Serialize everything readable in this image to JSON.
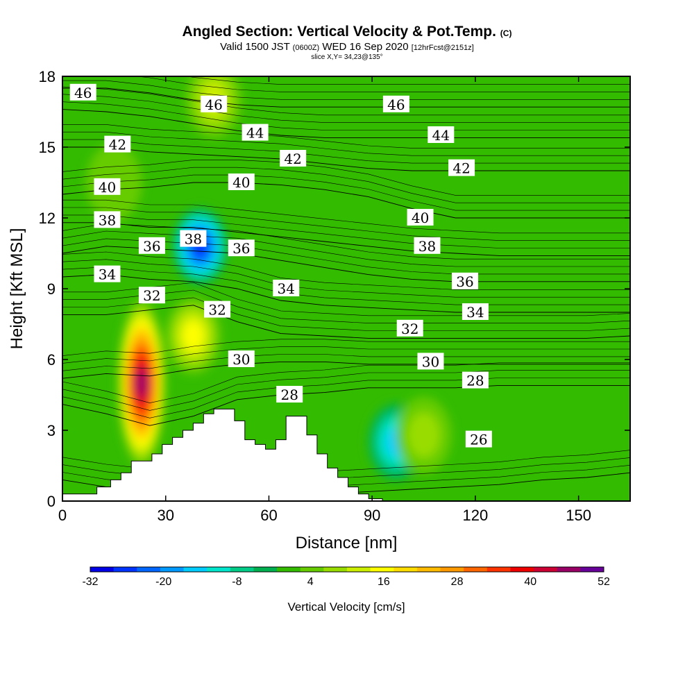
{
  "header": {
    "title": "Angled Section: Vertical Velocity & Pot.Temp.",
    "title_suffix": "(C)",
    "subtitle_a": "Valid 1500 JST",
    "subtitle_b": "(0600Z)",
    "subtitle_c": "WED 16 Sep 2020",
    "subtitle_d": "[12hrFcst@2151z]",
    "slice": "slice X,Y= 34,23@135°"
  },
  "chart_data": {
    "type": "heatmap",
    "xlabel": "Distance [nm]",
    "ylabel": "Height [Kft MSL]",
    "xlim": [
      0,
      165
    ],
    "ylim": [
      0,
      18
    ],
    "xticks": [
      "0",
      "30",
      "60",
      "90",
      "120",
      "150"
    ],
    "yticks": [
      "0",
      "3",
      "6",
      "9",
      "12",
      "15",
      "18"
    ],
    "colorbar": {
      "title": "Vertical Velocity [cm/s]",
      "levels": [
        -32,
        -28,
        -24,
        -20,
        -16,
        -12,
        -8,
        -4,
        0,
        4,
        8,
        12,
        16,
        20,
        24,
        28,
        32,
        36,
        40,
        44,
        48,
        52
      ],
      "tick_labels": [
        "-32",
        "-20",
        "-8",
        "4",
        "16",
        "28",
        "40",
        "52"
      ],
      "colors": [
        "#0000e6",
        "#0033ff",
        "#0066ff",
        "#0099ff",
        "#00ccff",
        "#00e6cc",
        "#00cc88",
        "#00b050",
        "#33bb00",
        "#66cc00",
        "#99dd00",
        "#ccee00",
        "#ffff00",
        "#ffdd00",
        "#ffbb00",
        "#ff9900",
        "#ff6600",
        "#ff3300",
        "#ee0000",
        "#cc0033",
        "#990066",
        "#660099"
      ]
    },
    "field": {
      "background_value": 2,
      "features": [
        {
          "x": 23,
          "y": 5.0,
          "value": 52,
          "note": "updraft core"
        },
        {
          "x": 38,
          "y": 7.0,
          "value": 20
        },
        {
          "x": 40,
          "y": 10.8,
          "value": -28,
          "note": "downdraft core"
        },
        {
          "x": 97,
          "y": 2.5,
          "value": -14
        },
        {
          "x": 44,
          "y": 17.0,
          "value": 16
        },
        {
          "x": 15,
          "y": 13.5,
          "value": 8
        },
        {
          "x": 105,
          "y": 2.8,
          "value": 12
        }
      ]
    },
    "terrain": {
      "x": [
        0,
        10,
        14,
        17,
        20,
        26,
        29,
        32,
        35,
        38,
        41,
        44,
        47,
        50,
        53,
        56,
        59,
        62,
        65,
        68,
        71,
        74,
        77,
        80,
        83,
        86,
        89,
        93
      ],
      "height": [
        0.3,
        0.6,
        0.9,
        1.2,
        1.7,
        2.0,
        2.4,
        2.7,
        3.0,
        3.3,
        3.7,
        3.9,
        3.9,
        3.4,
        2.6,
        2.4,
        2.2,
        2.6,
        3.6,
        3.6,
        2.8,
        2.0,
        1.4,
        1.0,
        0.6,
        0.3,
        0.1,
        0
      ]
    },
    "isentropes": [
      {
        "label": "26",
        "label_x": 121,
        "label_y": 2.6,
        "heights": [
          0.9,
          0.6,
          0.4,
          0.3,
          0.3,
          0.3,
          0.3,
          0.4,
          0.5,
          0.6,
          0.7,
          0.9,
          1.0,
          1.2
        ]
      },
      {
        "label": "28",
        "label_x": 66,
        "label_y": 4.5,
        "heights": [
          4.1,
          3.7,
          3.2,
          3.6,
          4.3,
          4.5,
          4.6,
          4.8,
          4.8,
          4.8,
          4.9,
          4.9,
          4.9,
          4.9
        ]
      },
      {
        "label": "30",
        "label_x": 52,
        "label_y": 6.0,
        "heights": [
          5.2,
          5.4,
          5.3,
          5.6,
          5.8,
          5.9,
          5.9,
          5.8,
          5.8,
          5.8,
          5.8,
          5.8,
          5.8,
          5.8
        ]
      },
      {
        "label": "32",
        "label_x": 45,
        "label_y": 8.1,
        "heights": [
          7.9,
          7.9,
          8.1,
          8.3,
          7.6,
          7.1,
          7.0,
          6.9,
          6.9,
          6.9,
          6.9,
          6.9,
          6.9,
          7.0
        ]
      },
      {
        "label": "34",
        "label_x": 65,
        "label_y": 9.0,
        "heights": [
          9.5,
          9.6,
          9.4,
          9.3,
          9.0,
          8.5,
          8.3,
          8.2,
          8.1,
          8.0,
          8.0,
          8.0,
          8.0,
          8.0
        ]
      },
      {
        "label": "36",
        "label_x": 52,
        "label_y": 10.7,
        "heights": [
          10.5,
          10.8,
          10.7,
          10.6,
          10.5,
          10.2,
          9.9,
          9.6,
          9.4,
          9.3,
          9.3,
          9.3,
          9.3,
          9.3
        ]
      },
      {
        "label": "38",
        "label_x": 38,
        "label_y": 11.1,
        "heights": [
          11.8,
          11.8,
          11.6,
          11.6,
          11.4,
          11.2,
          11.0,
          10.8,
          10.6,
          10.5,
          10.4,
          10.4,
          10.4,
          10.4
        ]
      },
      {
        "label": "40",
        "label_x": 52,
        "label_y": 13.5,
        "heights": [
          13.0,
          13.2,
          13.3,
          13.5,
          13.5,
          13.4,
          13.2,
          12.9,
          12.4,
          12.0,
          12.0,
          12.0,
          12.0,
          12.0
        ]
      },
      {
        "label": "42",
        "label_x": 67,
        "label_y": 14.5,
        "heights": [
          15.0,
          15.0,
          14.8,
          14.7,
          14.6,
          14.5,
          14.3,
          14.1,
          14.0,
          14.0,
          14.0,
          14.0,
          14.0,
          14.0
        ]
      },
      {
        "label": "44",
        "label_x": 56,
        "label_y": 15.6,
        "heights": [
          16.6,
          16.5,
          16.3,
          16.0,
          15.7,
          15.5,
          15.4,
          15.4,
          15.4,
          15.4,
          15.4,
          15.4,
          15.4,
          15.4
        ]
      },
      {
        "label": "46",
        "label_x": 44,
        "label_y": 16.8,
        "heights": [
          17.5,
          17.5,
          17.3,
          17.0,
          16.8,
          16.7,
          16.7,
          16.7,
          16.7,
          16.7,
          16.7,
          16.7,
          16.7,
          16.7
        ]
      }
    ],
    "extra_labels": [
      {
        "label": "46",
        "x": 6,
        "y": 17.3
      },
      {
        "label": "42",
        "x": 16,
        "y": 15.1
      },
      {
        "label": "40",
        "x": 13,
        "y": 13.3
      },
      {
        "label": "38",
        "x": 13,
        "y": 11.9
      },
      {
        "label": "36",
        "x": 26,
        "y": 10.8
      },
      {
        "label": "34",
        "x": 13,
        "y": 9.6
      },
      {
        "label": "32",
        "x": 26,
        "y": 8.7
      },
      {
        "label": "46",
        "x": 97,
        "y": 16.8
      },
      {
        "label": "44",
        "x": 110,
        "y": 15.5
      },
      {
        "label": "42",
        "x": 116,
        "y": 14.1
      },
      {
        "label": "40",
        "x": 104,
        "y": 12.0
      },
      {
        "label": "38",
        "x": 106,
        "y": 10.8
      },
      {
        "label": "36",
        "x": 117,
        "y": 9.3
      },
      {
        "label": "34",
        "x": 120,
        "y": 8.0
      },
      {
        "label": "32",
        "x": 101,
        "y": 7.3
      },
      {
        "label": "30",
        "x": 107,
        "y": 5.9
      },
      {
        "label": "28",
        "x": 120,
        "y": 5.1
      }
    ]
  }
}
